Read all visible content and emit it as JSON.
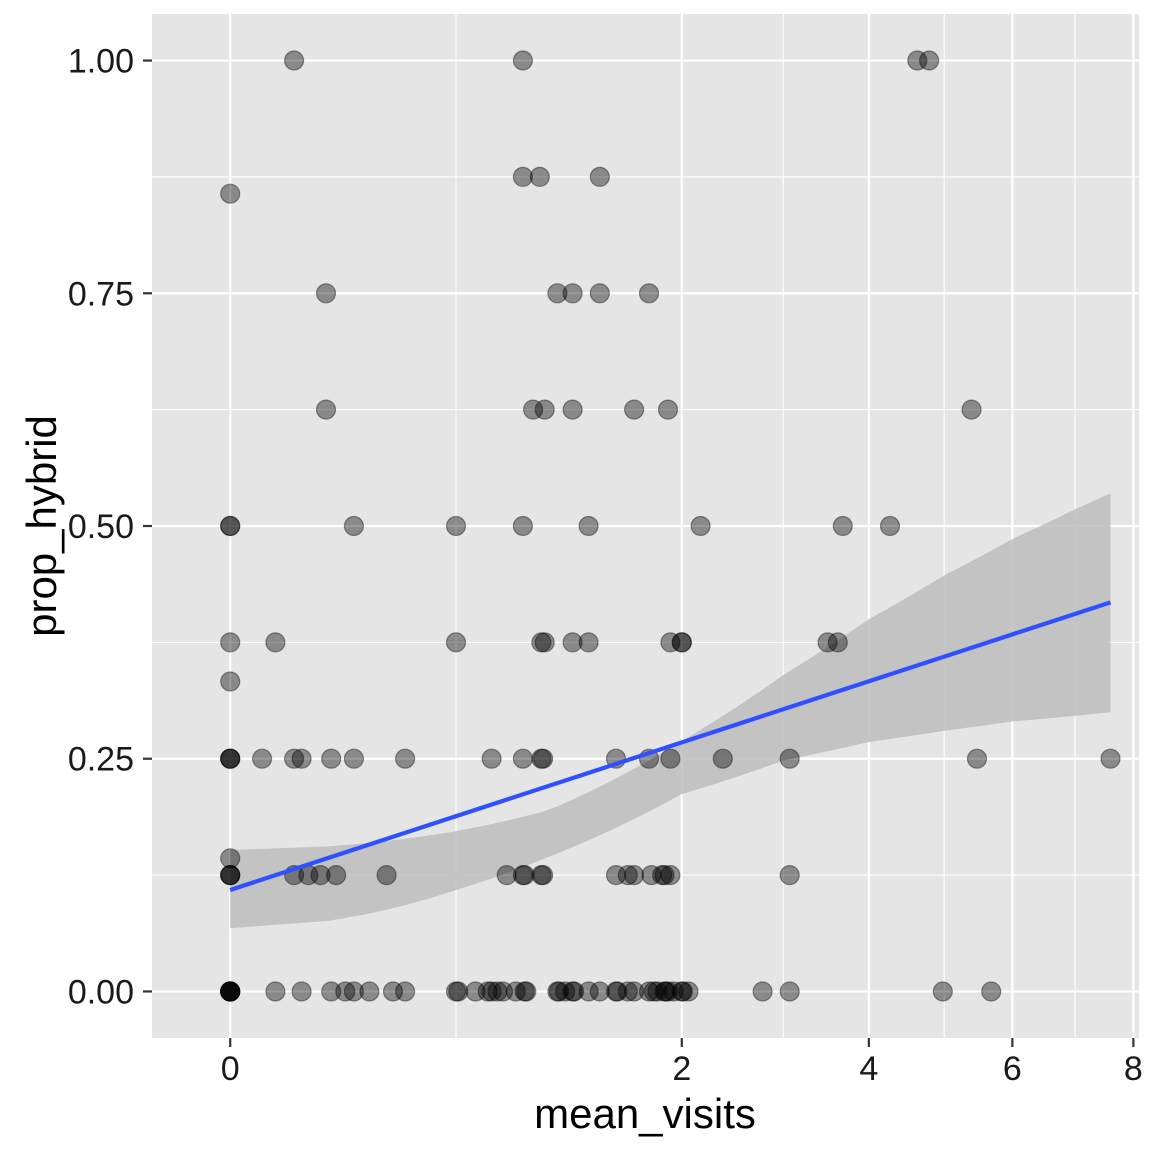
{
  "chart_data": {
    "type": "scatter",
    "xlabel": "mean_visits",
    "ylabel": "prop_hybrid",
    "x_scale": "sqrt",
    "xlim": [
      -0.06,
      8.1
    ],
    "ylim": [
      -0.05,
      1.05
    ],
    "x_ticks": [
      {
        "value": 0,
        "label": "0"
      },
      {
        "value": 2,
        "label": "2"
      },
      {
        "value": 4,
        "label": "4"
      },
      {
        "value": 6,
        "label": "6"
      },
      {
        "value": 8,
        "label": "8"
      }
    ],
    "x_minor_ticks": [
      0.5,
      3,
      5,
      7
    ],
    "y_ticks": [
      {
        "value": 0.0,
        "label": "0.00"
      },
      {
        "value": 0.25,
        "label": "0.25"
      },
      {
        "value": 0.5,
        "label": "0.50"
      },
      {
        "value": 0.75,
        "label": "0.75"
      },
      {
        "value": 1.0,
        "label": "1.00"
      }
    ],
    "y_minor_ticks": [
      0.125,
      0.375,
      0.625,
      0.875
    ],
    "grid": true,
    "legend": "none",
    "colors": {
      "panel": "#e5e5e5",
      "grid": "#ffffff",
      "point": "#000000",
      "trend": "#3050ff",
      "band": "#bdbdbd"
    },
    "point_alpha": 0.4,
    "points": [
      {
        "x": 0.04,
        "y": 1.0
      },
      {
        "x": 0.84,
        "y": 1.0
      },
      {
        "x": 4.63,
        "y": 1.0
      },
      {
        "x": 4.79,
        "y": 1.0
      },
      {
        "x": 0.0,
        "y": 0.857
      },
      {
        "x": 0.84,
        "y": 0.875
      },
      {
        "x": 0.94,
        "y": 0.875
      },
      {
        "x": 1.34,
        "y": 0.875
      },
      {
        "x": 0.09,
        "y": 0.75
      },
      {
        "x": 1.05,
        "y": 0.75
      },
      {
        "x": 1.15,
        "y": 0.75
      },
      {
        "x": 1.34,
        "y": 0.75
      },
      {
        "x": 1.72,
        "y": 0.75
      },
      {
        "x": 0.09,
        "y": 0.625
      },
      {
        "x": 0.9,
        "y": 0.625
      },
      {
        "x": 0.97,
        "y": 0.625
      },
      {
        "x": 1.15,
        "y": 0.625
      },
      {
        "x": 1.6,
        "y": 0.625
      },
      {
        "x": 1.88,
        "y": 0.625
      },
      {
        "x": 5.39,
        "y": 0.625
      },
      {
        "x": 0.0,
        "y": 0.5
      },
      {
        "x": 0.0,
        "y": 0.5
      },
      {
        "x": 0.15,
        "y": 0.5
      },
      {
        "x": 0.5,
        "y": 0.5
      },
      {
        "x": 0.84,
        "y": 0.5
      },
      {
        "x": 1.26,
        "y": 0.5
      },
      {
        "x": 2.17,
        "y": 0.5
      },
      {
        "x": 3.68,
        "y": 0.5
      },
      {
        "x": 4.27,
        "y": 0.5
      },
      {
        "x": 0.0,
        "y": 0.375
      },
      {
        "x": 0.02,
        "y": 0.375
      },
      {
        "x": 0.5,
        "y": 0.375
      },
      {
        "x": 0.95,
        "y": 0.375
      },
      {
        "x": 0.97,
        "y": 0.375
      },
      {
        "x": 1.15,
        "y": 0.375
      },
      {
        "x": 1.26,
        "y": 0.375
      },
      {
        "x": 1.9,
        "y": 0.375
      },
      {
        "x": 2.0,
        "y": 0.375
      },
      {
        "x": 2.0,
        "y": 0.375
      },
      {
        "x": 3.5,
        "y": 0.375
      },
      {
        "x": 3.62,
        "y": 0.375
      },
      {
        "x": 0.0,
        "y": 0.333
      },
      {
        "x": 0.0,
        "y": 0.25
      },
      {
        "x": 0.0,
        "y": 0.25
      },
      {
        "x": 0.0,
        "y": 0.25
      },
      {
        "x": 0.01,
        "y": 0.25
      },
      {
        "x": 0.04,
        "y": 0.25
      },
      {
        "x": 0.05,
        "y": 0.25
      },
      {
        "x": 0.1,
        "y": 0.25
      },
      {
        "x": 0.15,
        "y": 0.25
      },
      {
        "x": 0.3,
        "y": 0.25
      },
      {
        "x": 0.67,
        "y": 0.25
      },
      {
        "x": 0.84,
        "y": 0.25
      },
      {
        "x": 0.95,
        "y": 0.25
      },
      {
        "x": 0.96,
        "y": 0.25
      },
      {
        "x": 1.46,
        "y": 0.25
      },
      {
        "x": 1.72,
        "y": 0.25
      },
      {
        "x": 1.9,
        "y": 0.25
      },
      {
        "x": 2.38,
        "y": 0.25
      },
      {
        "x": 3.07,
        "y": 0.25
      },
      {
        "x": 5.47,
        "y": 0.25
      },
      {
        "x": 7.6,
        "y": 0.25
      },
      {
        "x": 0.0,
        "y": 0.143
      },
      {
        "x": 0.0,
        "y": 0.125
      },
      {
        "x": 0.0,
        "y": 0.125
      },
      {
        "x": 0.0,
        "y": 0.125
      },
      {
        "x": 0.04,
        "y": 0.125
      },
      {
        "x": 0.06,
        "y": 0.125
      },
      {
        "x": 0.08,
        "y": 0.125
      },
      {
        "x": 0.11,
        "y": 0.125
      },
      {
        "x": 0.24,
        "y": 0.125
      },
      {
        "x": 0.75,
        "y": 0.125
      },
      {
        "x": 0.84,
        "y": 0.125
      },
      {
        "x": 0.85,
        "y": 0.125
      },
      {
        "x": 0.95,
        "y": 0.125
      },
      {
        "x": 0.96,
        "y": 0.125
      },
      {
        "x": 1.46,
        "y": 0.125
      },
      {
        "x": 1.6,
        "y": 0.125
      },
      {
        "x": 1.74,
        "y": 0.125
      },
      {
        "x": 1.55,
        "y": 0.125
      },
      {
        "x": 1.83,
        "y": 0.125
      },
      {
        "x": 1.85,
        "y": 0.125
      },
      {
        "x": 1.9,
        "y": 0.125
      },
      {
        "x": 3.07,
        "y": 0.125
      },
      {
        "x": 0.0,
        "y": 0.0
      },
      {
        "x": 0.0,
        "y": 0.0
      },
      {
        "x": 0.0,
        "y": 0.0
      },
      {
        "x": 0.0,
        "y": 0.0
      },
      {
        "x": 0.0,
        "y": 0.0
      },
      {
        "x": 0.0,
        "y": 0.0
      },
      {
        "x": 0.02,
        "y": 0.0
      },
      {
        "x": 0.05,
        "y": 0.0
      },
      {
        "x": 0.1,
        "y": 0.0
      },
      {
        "x": 0.13,
        "y": 0.0
      },
      {
        "x": 0.15,
        "y": 0.0
      },
      {
        "x": 0.19,
        "y": 0.0
      },
      {
        "x": 0.26,
        "y": 0.0
      },
      {
        "x": 0.3,
        "y": 0.0
      },
      {
        "x": 0.5,
        "y": 0.0
      },
      {
        "x": 0.51,
        "y": 0.0
      },
      {
        "x": 0.59,
        "y": 0.0
      },
      {
        "x": 0.65,
        "y": 0.0
      },
      {
        "x": 0.67,
        "y": 0.0
      },
      {
        "x": 0.7,
        "y": 0.0
      },
      {
        "x": 0.73,
        "y": 0.0
      },
      {
        "x": 0.8,
        "y": 0.0
      },
      {
        "x": 0.85,
        "y": 0.0
      },
      {
        "x": 0.86,
        "y": 0.0
      },
      {
        "x": 1.05,
        "y": 0.0
      },
      {
        "x": 1.06,
        "y": 0.0
      },
      {
        "x": 1.1,
        "y": 0.0
      },
      {
        "x": 1.15,
        "y": 0.0
      },
      {
        "x": 1.16,
        "y": 0.0
      },
      {
        "x": 1.26,
        "y": 0.0
      },
      {
        "x": 1.34,
        "y": 0.0
      },
      {
        "x": 1.46,
        "y": 0.0
      },
      {
        "x": 1.47,
        "y": 0.0
      },
      {
        "x": 1.55,
        "y": 0.0
      },
      {
        "x": 1.6,
        "y": 0.0
      },
      {
        "x": 1.72,
        "y": 0.0
      },
      {
        "x": 1.76,
        "y": 0.0
      },
      {
        "x": 1.79,
        "y": 0.0
      },
      {
        "x": 1.85,
        "y": 0.0
      },
      {
        "x": 1.86,
        "y": 0.0
      },
      {
        "x": 1.88,
        "y": 0.0
      },
      {
        "x": 1.93,
        "y": 0.0
      },
      {
        "x": 2.0,
        "y": 0.0
      },
      {
        "x": 2.01,
        "y": 0.0
      },
      {
        "x": 2.06,
        "y": 0.0
      },
      {
        "x": 2.78,
        "y": 0.0
      },
      {
        "x": 3.07,
        "y": 0.0
      },
      {
        "x": 4.98,
        "y": 0.0
      },
      {
        "x": 5.68,
        "y": 0.0
      }
    ],
    "trend_line": {
      "x": [
        0.0,
        7.6
      ],
      "y": [
        0.109,
        0.418
      ]
    },
    "confidence_band": {
      "x": [
        0.0,
        0.5,
        1.0,
        2.0,
        3.0,
        4.0,
        5.0,
        6.0,
        7.0,
        7.6
      ],
      "lower": [
        0.068,
        0.109,
        0.145,
        0.212,
        0.248,
        0.268,
        0.28,
        0.29,
        0.296,
        0.3
      ],
      "upper": [
        0.152,
        0.172,
        0.195,
        0.269,
        0.34,
        0.4,
        0.447,
        0.486,
        0.518,
        0.535
      ]
    }
  }
}
